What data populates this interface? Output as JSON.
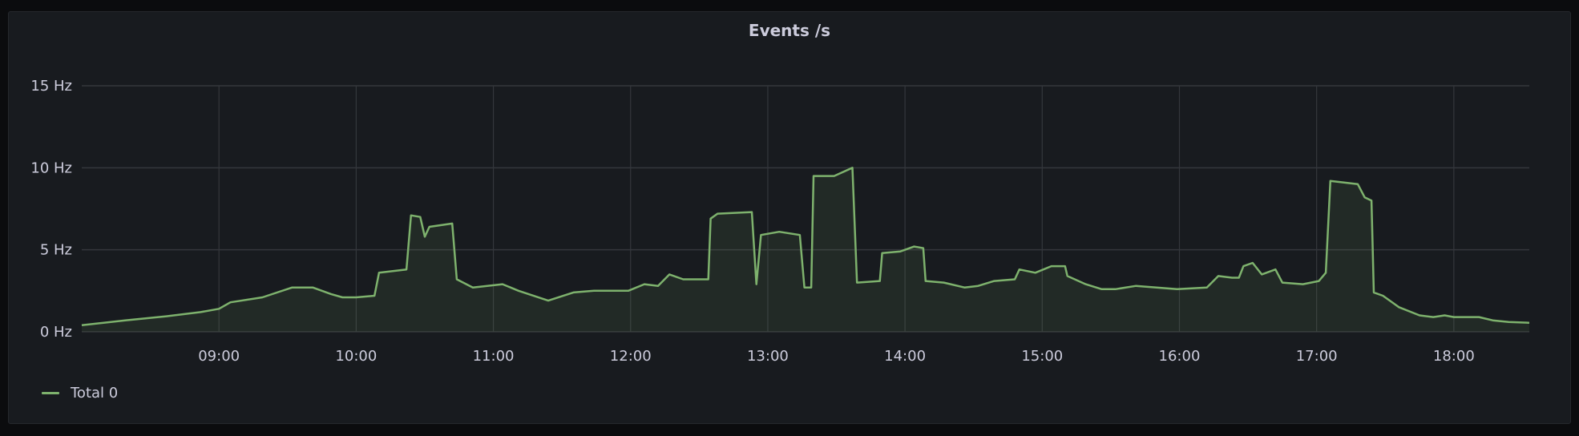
{
  "chart_data": {
    "type": "area",
    "title": "Events /s",
    "xlabel": "",
    "ylabel": "",
    "xlim": [
      "08:00",
      "18:33"
    ],
    "ylim": [
      0,
      15
    ],
    "y_unit": "Hz",
    "y_ticks": [
      "0 Hz",
      "5 Hz",
      "10 Hz",
      "15 Hz"
    ],
    "y_tick_values": [
      0,
      5,
      10,
      15
    ],
    "x_ticks": [
      "09:00",
      "10:00",
      "11:00",
      "12:00",
      "13:00",
      "14:00",
      "15:00",
      "16:00",
      "17:00",
      "18:00"
    ],
    "grid": true,
    "legend_position": "bottom-left",
    "colors": {
      "line": "#7eb26d"
    },
    "series": [
      {
        "name": "Total 0",
        "x": [
          "08:00",
          "08:19",
          "08:37",
          "08:52",
          "09:00",
          "09:05",
          "09:19",
          "09:32",
          "09:41",
          "09:49",
          "09:54",
          "10:00",
          "10:08",
          "10:10",
          "10:22",
          "10:24",
          "10:28",
          "10:30",
          "10:32",
          "10:42",
          "10:44",
          "10:51",
          "11:04",
          "11:11",
          "11:24",
          "11:35",
          "11:44",
          "11:59",
          "12:06",
          "12:12",
          "12:17",
          "12:23",
          "12:34",
          "12:35",
          "12:38",
          "12:53",
          "12:55",
          "12:57",
          "13:05",
          "13:14",
          "13:16",
          "13:19",
          "13:20",
          "13:29",
          "13:37",
          "13:39",
          "13:49",
          "13:50",
          "13:58",
          "14:04",
          "14:08",
          "14:09",
          "14:17",
          "14:26",
          "14:32",
          "14:39",
          "14:48",
          "14:50",
          "14:57",
          "15:04",
          "15:10",
          "15:11",
          "15:19",
          "15:26",
          "15:32",
          "15:41",
          "15:50",
          "15:59",
          "16:12",
          "16:17",
          "16:23",
          "16:26",
          "16:28",
          "16:32",
          "16:36",
          "16:42",
          "16:45",
          "16:54",
          "17:01",
          "17:04",
          "17:06",
          "17:12",
          "17:18",
          "17:21",
          "17:24",
          "17:25",
          "17:29",
          "17:36",
          "17:45",
          "17:51",
          "17:56",
          "18:00",
          "18:11",
          "18:17",
          "18:24",
          "18:33"
        ],
        "values": [
          0.4,
          0.7,
          0.95,
          1.2,
          1.4,
          1.8,
          2.1,
          2.7,
          2.7,
          2.3,
          2.1,
          2.1,
          2.2,
          3.6,
          3.8,
          7.1,
          7.0,
          5.8,
          6.4,
          6.6,
          3.2,
          2.7,
          2.9,
          2.5,
          1.9,
          2.4,
          2.5,
          2.5,
          2.9,
          2.8,
          3.5,
          3.2,
          3.2,
          6.9,
          7.2,
          7.3,
          2.9,
          5.9,
          6.1,
          5.9,
          2.7,
          2.7,
          9.5,
          9.5,
          10.0,
          3.0,
          3.1,
          4.8,
          4.9,
          5.2,
          5.1,
          3.1,
          3.0,
          2.7,
          2.8,
          3.1,
          3.2,
          3.8,
          3.6,
          4.0,
          4.0,
          3.4,
          2.9,
          2.6,
          2.6,
          2.8,
          2.7,
          2.6,
          2.7,
          3.4,
          3.3,
          3.3,
          4.0,
          4.2,
          3.5,
          3.8,
          3.0,
          2.9,
          3.1,
          3.6,
          9.2,
          9.1,
          9.0,
          8.2,
          8.0,
          2.4,
          2.2,
          1.5,
          1.0,
          0.9,
          1.0,
          0.9,
          0.9,
          0.7,
          0.6,
          0.55
        ]
      }
    ]
  }
}
